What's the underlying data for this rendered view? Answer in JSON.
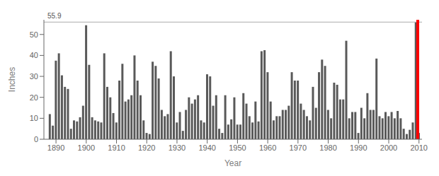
{
  "chart_data": {
    "type": "bar",
    "xlabel": "Year",
    "ylabel": "Inches",
    "color": "#595959",
    "xlim": [
      1886,
      2011
    ],
    "ylim": [
      0,
      57
    ],
    "xticks": [
      1890,
      1900,
      1910,
      1920,
      1930,
      1940,
      1950,
      1960,
      1970,
      1980,
      1990,
      2000,
      2010
    ],
    "yticks": [
      0,
      10,
      20,
      30,
      40,
      50
    ],
    "grid": false,
    "reference_lines": [
      {
        "axis": "y",
        "value": 55.9,
        "color": "#aaaaaa",
        "label": "55.9"
      },
      {
        "axis": "x",
        "value": 2009.6,
        "color": "red"
      }
    ],
    "x": [
      1888,
      1889,
      1890,
      1891,
      1892,
      1893,
      1894,
      1895,
      1896,
      1897,
      1898,
      1899,
      1900,
      1901,
      1902,
      1903,
      1904,
      1905,
      1906,
      1907,
      1908,
      1909,
      1910,
      1911,
      1912,
      1913,
      1914,
      1915,
      1916,
      1917,
      1918,
      1919,
      1920,
      1921,
      1922,
      1923,
      1924,
      1925,
      1926,
      1927,
      1928,
      1929,
      1930,
      1931,
      1932,
      1933,
      1934,
      1935,
      1936,
      1937,
      1938,
      1939,
      1940,
      1941,
      1942,
      1943,
      1944,
      1945,
      1946,
      1947,
      1948,
      1949,
      1950,
      1951,
      1952,
      1953,
      1954,
      1955,
      1956,
      1957,
      1958,
      1959,
      1960,
      1961,
      1962,
      1963,
      1964,
      1965,
      1966,
      1967,
      1968,
      1969,
      1970,
      1971,
      1972,
      1973,
      1974,
      1975,
      1976,
      1977,
      1978,
      1979,
      1980,
      1981,
      1982,
      1983,
      1984,
      1985,
      1986,
      1987,
      1988,
      1989,
      1990,
      1991,
      1992,
      1993,
      1994,
      1995,
      1996,
      1997,
      1998,
      1999,
      2000,
      2001,
      2002,
      2003,
      2004,
      2005,
      2006,
      2007,
      2008,
      2009,
      2010
    ],
    "values": [
      12.0,
      6.5,
      37.5,
      41.0,
      30.5,
      25.0,
      24.0,
      5.0,
      9.0,
      8.5,
      10.5,
      16.0,
      54.4,
      35.5,
      10.5,
      9.0,
      8.5,
      8.0,
      41.0,
      25.0,
      20.0,
      12.5,
      8.0,
      28.0,
      36.0,
      18.0,
      19.0,
      21.0,
      40.0,
      28.0,
      21.0,
      9.0,
      3.0,
      2.5,
      37.0,
      35.0,
      29.0,
      14.0,
      11.0,
      12.0,
      42.0,
      30.0,
      8.0,
      13.0,
      4.0,
      14.0,
      20.0,
      17.0,
      19.0,
      21.0,
      9.0,
      8.0,
      31.0,
      30.0,
      16.0,
      21.0,
      5.0,
      3.0,
      21.0,
      7.0,
      9.5,
      20.0,
      7.0,
      7.0,
      22.0,
      17.0,
      11.0,
      8.0,
      18.0,
      8.5,
      42.0,
      42.5,
      32.0,
      18.0,
      9.0,
      11.0,
      11.0,
      14.0,
      14.0,
      16.0,
      32.0,
      28.0,
      28.0,
      17.0,
      14.0,
      11.0,
      9.0,
      25.0,
      15.0,
      32.0,
      38.0,
      35.0,
      14.0,
      10.0,
      27.0,
      26.0,
      19.0,
      19.0,
      47.0,
      10.0,
      13.0,
      13.0,
      3.0,
      15.0,
      10.0,
      22.0,
      14.0,
      14.0,
      38.5,
      11.0,
      10.0,
      13.0,
      11.0,
      13.0,
      10.0,
      13.5,
      10.0,
      5.0,
      2.5,
      4.5,
      8.0,
      55.9,
      3.0
    ]
  }
}
